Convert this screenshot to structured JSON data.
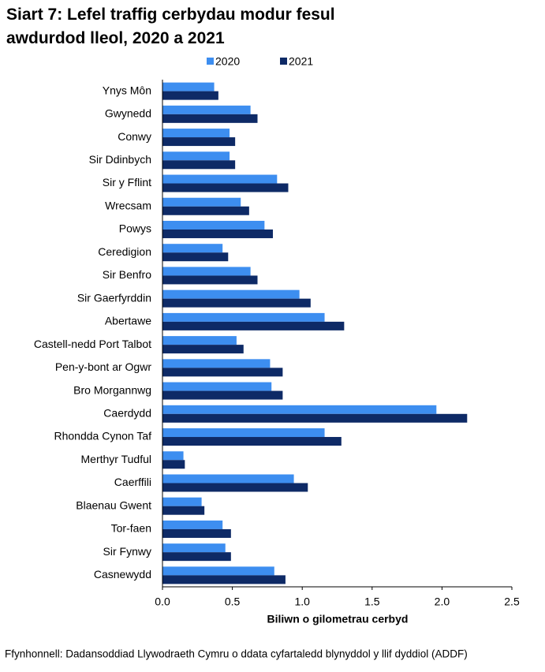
{
  "chart_data": {
    "type": "barh",
    "title": "Siart 7: Lefel traffig cerbydau modur fesul awdurdod lleol, 2020 a 2021",
    "x_label": "Biliwn o gilometrau cerbyd",
    "source": "Ffynhonnell: Dadansoddiad Llywodraeth Cymru o ddata cyfartaledd blynyddol y llif dyddiol (ADDF)",
    "categories": [
      "Ynys Môn",
      "Gwynedd",
      "Conwy",
      "Sir Ddinbych",
      "Sir y Fflint",
      "Wrecsam",
      "Powys",
      "Ceredigion",
      "Sir Benfro",
      "Sir Gaerfyrddin",
      "Abertawe",
      "Castell-nedd Port Talbot",
      "Pen-y-bont ar Ogwr",
      "Bro Morgannwg",
      "Caerdydd",
      "Rhondda Cynon Taf",
      "Merthyr Tudful",
      "Caerffili",
      "Blaenau Gwent",
      "Tor-faen",
      "Sir Fynwy",
      "Casnewydd"
    ],
    "series": [
      {
        "name": "2020",
        "color": "#3d8ef0",
        "values": [
          0.37,
          0.63,
          0.48,
          0.48,
          0.82,
          0.56,
          0.73,
          0.43,
          0.63,
          0.98,
          1.16,
          0.53,
          0.77,
          0.78,
          1.96,
          1.16,
          0.15,
          0.94,
          0.28,
          0.43,
          0.45,
          0.8
        ]
      },
      {
        "name": "2021",
        "color": "#0e2a66",
        "values": [
          0.4,
          0.68,
          0.52,
          0.52,
          0.9,
          0.62,
          0.79,
          0.47,
          0.68,
          1.06,
          1.3,
          0.58,
          0.86,
          0.86,
          2.18,
          1.28,
          0.16,
          1.04,
          0.3,
          0.49,
          0.49,
          0.88
        ]
      }
    ],
    "xlim": [
      0,
      2.5
    ],
    "xticks": [
      {
        "value": 0,
        "label": "0.0"
      },
      0.5,
      {
        "value": 1,
        "label": "1.0"
      },
      1.5,
      {
        "value": 2,
        "label": "2.0"
      },
      2.5
    ],
    "grid": false
  }
}
